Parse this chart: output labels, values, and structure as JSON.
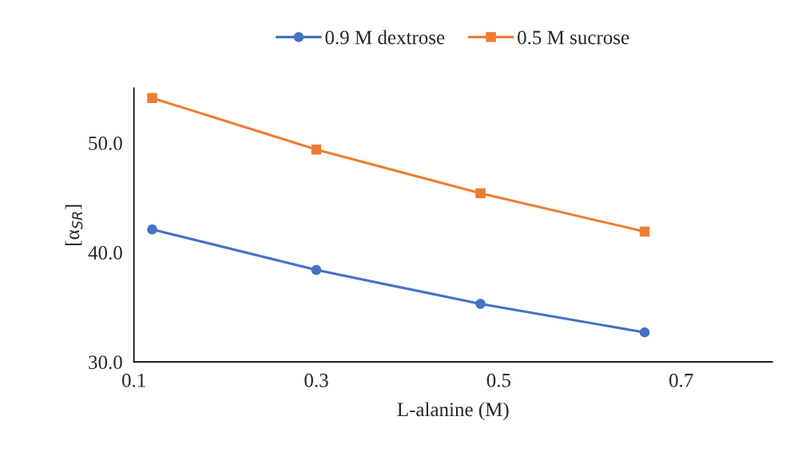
{
  "chart_data": {
    "type": "line",
    "xlabel": "L-alanine (M)",
    "ylabel": "[α$_{SR}$]",
    "x": [
      0.12,
      0.3,
      0.48,
      0.66
    ],
    "series": [
      {
        "name": "0.9 M dextrose",
        "color": "#4472c4",
        "marker": "circle",
        "values": [
          42.1,
          38.4,
          35.3,
          32.7
        ]
      },
      {
        "name": "0.5 M sucrose",
        "color": "#ed7d31",
        "marker": "square",
        "values": [
          54.1,
          49.4,
          45.4,
          41.9
        ]
      }
    ],
    "xlim": [
      0.1,
      0.8
    ],
    "xticks": [
      0.1,
      0.3,
      0.5,
      0.7
    ],
    "ylim": [
      30,
      55
    ],
    "yticks": [
      {
        "value": 30,
        "label": "30.0"
      },
      {
        "value": 40,
        "label": "40.0"
      },
      {
        "value": 50,
        "label": "50.0"
      }
    ],
    "grid": false,
    "legend": "top",
    "line_style": "solid"
  }
}
